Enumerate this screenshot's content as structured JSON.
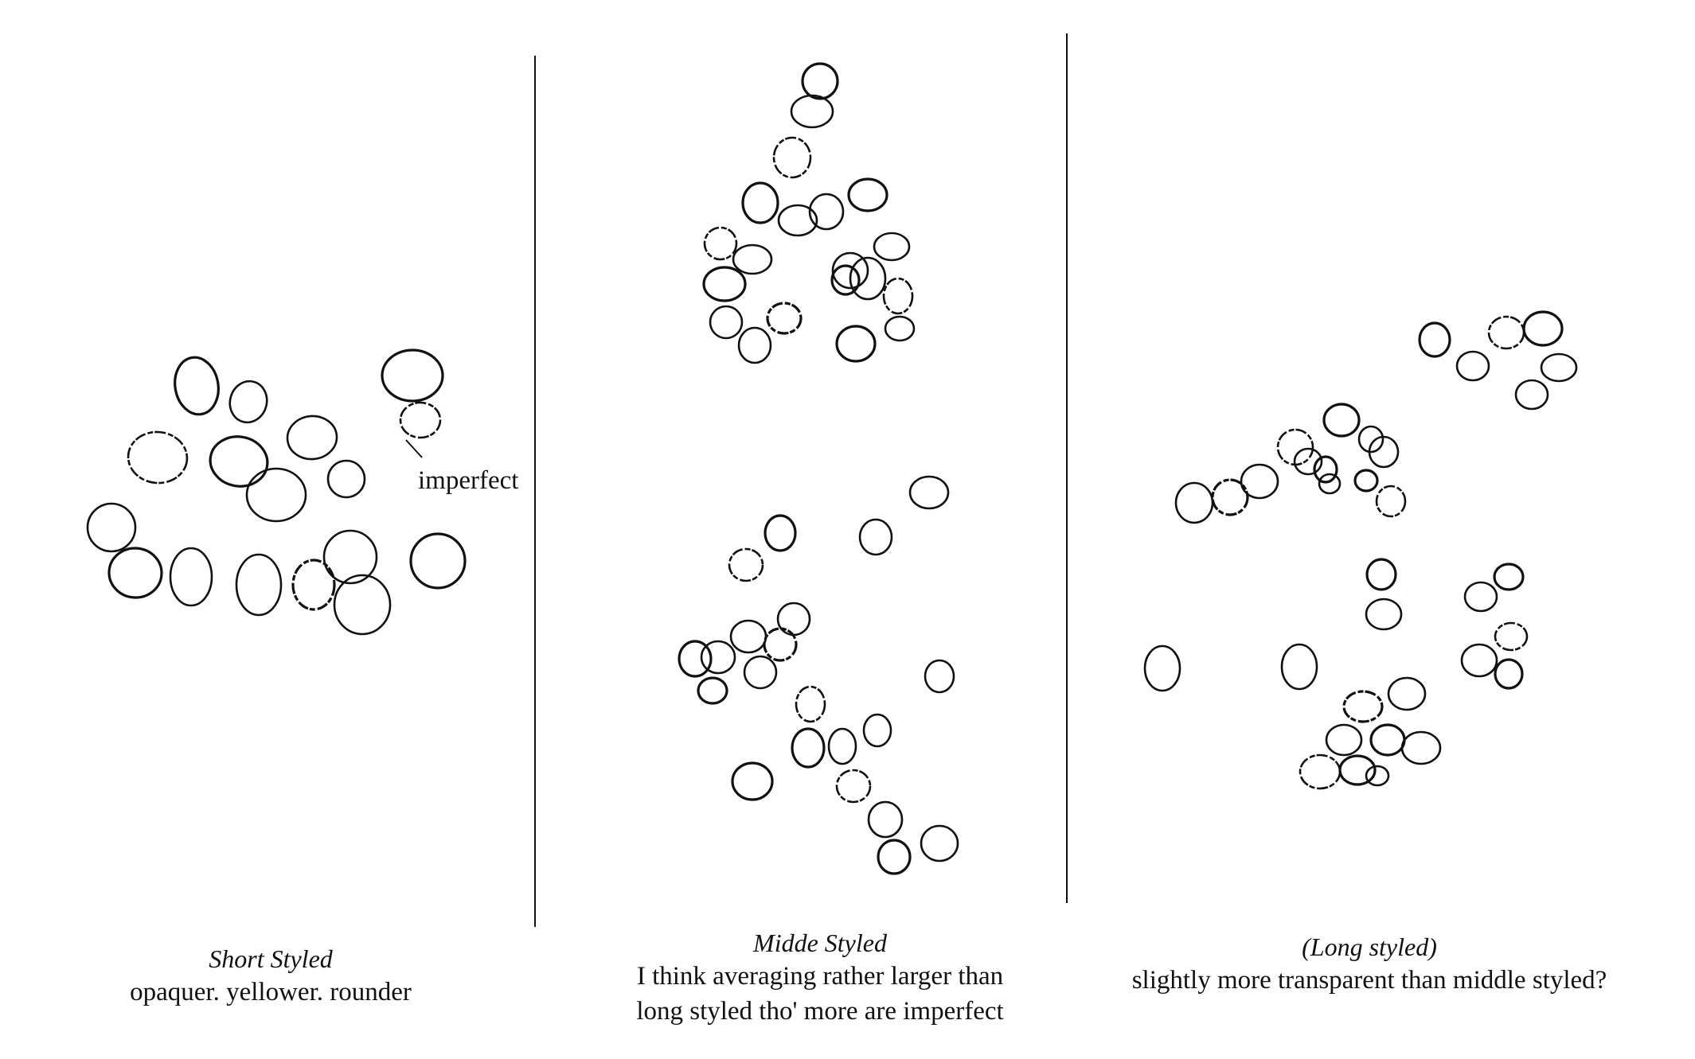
{
  "panels": [
    {
      "id": "short",
      "title": "Short Styled",
      "lines": [
        "opaquer.  yellower.  rounder"
      ]
    },
    {
      "id": "middle",
      "title": "Midde Styled",
      "lines": [
        "I think averaging rather larger than",
        "long styled tho' more are imperfect"
      ]
    },
    {
      "id": "long",
      "title": "(Long styled)",
      "lines": [
        "slightly more transparent than middle styled?"
      ]
    }
  ],
  "annotation": {
    "label": "imperfect"
  }
}
